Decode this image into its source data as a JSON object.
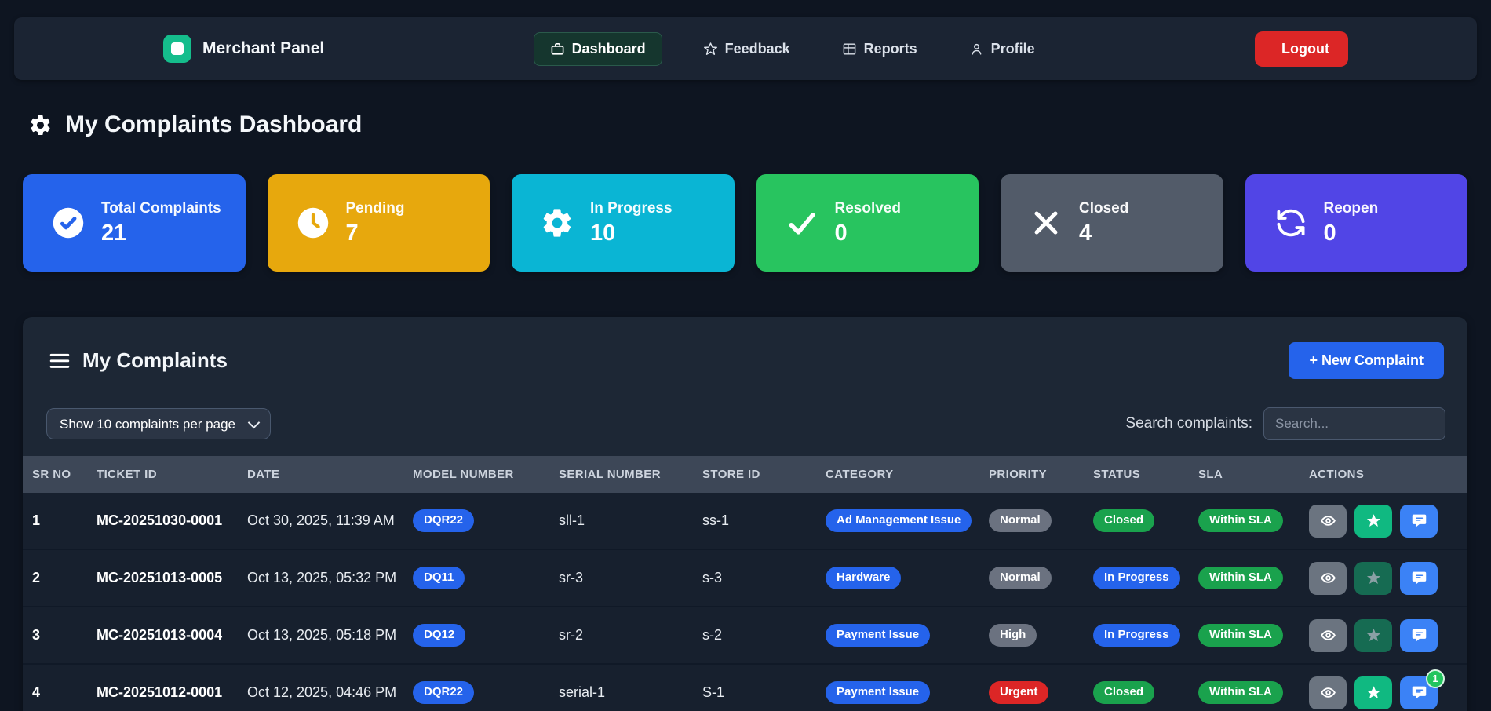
{
  "navbar": {
    "brand": "Merchant Panel",
    "items": [
      {
        "label": "Dashboard",
        "icon": "briefcase-icon",
        "active": true
      },
      {
        "label": "Feedback",
        "icon": "star-icon",
        "active": false
      },
      {
        "label": "Reports",
        "icon": "reports-grid-icon",
        "active": false
      },
      {
        "label": "Profile",
        "icon": "person-icon",
        "active": false
      }
    ],
    "logout": {
      "label": "Logout"
    }
  },
  "page_title": {
    "text": "My Complaints Dashboard"
  },
  "stats": [
    {
      "label": "Total Complaints",
      "value": "21",
      "color": "#2563eb",
      "icon": "check-circle-icon"
    },
    {
      "label": "Pending",
      "value": "7",
      "color": "#e7a80d",
      "icon": "clock-icon"
    },
    {
      "label": "In Progress",
      "value": "10",
      "color": "#0ab5d4",
      "icon": "gear-icon"
    },
    {
      "label": "Resolved",
      "value": "0",
      "color": "#28c45f",
      "icon": "check-icon"
    },
    {
      "label": "Closed",
      "value": "4",
      "color": "#525b69",
      "icon": "x-icon"
    },
    {
      "label": "Reopen",
      "value": "0",
      "color": "#5145e6",
      "icon": "refresh-icon"
    }
  ],
  "panel": {
    "title": "My Complaints",
    "new_complaint_label": "+ New Complaint",
    "per_page_label": "Show 10 complaints per page",
    "search_label": "Search complaints:",
    "search_placeholder": "Search...",
    "columns": [
      "SR NO",
      "TICKET ID",
      "DATE",
      "MODEL NUMBER",
      "SERIAL NUMBER",
      "STORE ID",
      "CATEGORY",
      "PRIORITY",
      "STATUS",
      "SLA",
      "ACTIONS"
    ],
    "badge_colors": {
      "blue": "#2563eb",
      "gray": "#6b7280",
      "green": "#1aa24d",
      "red": "#dc2626"
    },
    "rows": [
      {
        "sr": "1",
        "ticket": "MC-20251030-0001",
        "date": "Oct 30, 2025, 11:39 AM",
        "model": "DQR22",
        "serial": "sll-1",
        "store": "ss-1",
        "category": "Ad Management Issue",
        "priority": {
          "label": "Normal",
          "color": "gray"
        },
        "status": {
          "label": "Closed",
          "color": "green"
        },
        "sla": {
          "label": "Within SLA",
          "color": "green"
        },
        "star_enabled": true,
        "chat_badge": ""
      },
      {
        "sr": "2",
        "ticket": "MC-20251013-0005",
        "date": "Oct 13, 2025, 05:32 PM",
        "model": "DQ11",
        "serial": "sr-3",
        "store": "s-3",
        "category": "Hardware",
        "priority": {
          "label": "Normal",
          "color": "gray"
        },
        "status": {
          "label": "In Progress",
          "color": "blue"
        },
        "sla": {
          "label": "Within SLA",
          "color": "green"
        },
        "star_enabled": false,
        "chat_badge": ""
      },
      {
        "sr": "3",
        "ticket": "MC-20251013-0004",
        "date": "Oct 13, 2025, 05:18 PM",
        "model": "DQ12",
        "serial": "sr-2",
        "store": "s-2",
        "category": "Payment Issue",
        "priority": {
          "label": "High",
          "color": "gray"
        },
        "status": {
          "label": "In Progress",
          "color": "blue"
        },
        "sla": {
          "label": "Within SLA",
          "color": "green"
        },
        "star_enabled": false,
        "chat_badge": ""
      },
      {
        "sr": "4",
        "ticket": "MC-20251012-0001",
        "date": "Oct 12, 2025, 04:46 PM",
        "model": "DQR22",
        "serial": "serial-1",
        "store": "S-1",
        "category": "Payment Issue",
        "priority": {
          "label": "Urgent",
          "color": "red"
        },
        "status": {
          "label": "Closed",
          "color": "green"
        },
        "sla": {
          "label": "Within SLA",
          "color": "green"
        },
        "star_enabled": true,
        "chat_badge": "1"
      }
    ]
  }
}
